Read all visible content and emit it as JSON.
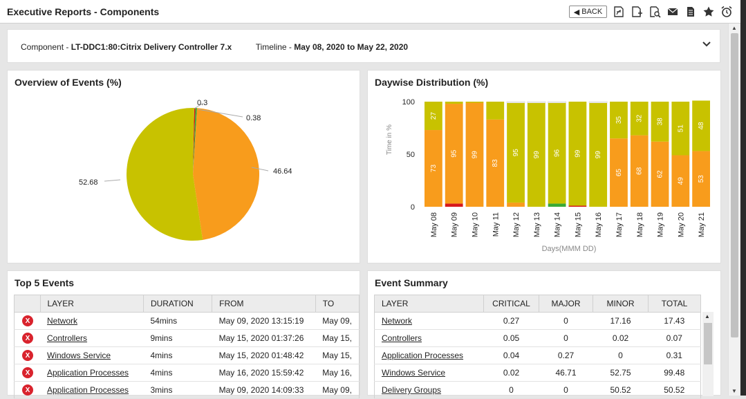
{
  "header": {
    "title": "Executive Reports - Components",
    "back_label": "BACK",
    "icons": [
      "pdf-export-icon",
      "add-document-icon",
      "search-report-icon",
      "mail-icon",
      "report-icon",
      "star-icon",
      "alarm-icon"
    ]
  },
  "info": {
    "component_label": "Component - ",
    "component_value": "LT-DDC1:80:Citrix Delivery Controller 7.x",
    "timeline_label": "Timeline - ",
    "timeline_value": "May 08, 2020 to May 22, 2020"
  },
  "pie": {
    "title": "Overview of Events (%)",
    "labels": [
      "0.3",
      "0.38",
      "46.64",
      "52.68"
    ]
  },
  "bar": {
    "title": "Daywise Distribution (%)",
    "ylabel": "Time in %",
    "xlabel": "Days(MMM DD)"
  },
  "colors": {
    "critical": "#d7191c",
    "major": "#f89c1c",
    "minor": "#c8c200",
    "normal": "#3aaa35",
    "unknown": "#ffffff"
  },
  "chart_data": [
    {
      "type": "pie",
      "title": "Overview of Events (%)",
      "slices": [
        {
          "value": 0.3,
          "color": "#d7191c"
        },
        {
          "value": 0.38,
          "color": "#3aaa35"
        },
        {
          "value": 46.64,
          "color": "#f89c1c"
        },
        {
          "value": 52.68,
          "color": "#c8c200"
        }
      ]
    },
    {
      "type": "bar",
      "stacked": true,
      "title": "Daywise Distribution (%)",
      "xlabel": "Days(MMM DD)",
      "ylabel": "Time in %",
      "ylim": [
        0,
        100
      ],
      "yticks": [
        0,
        50,
        100
      ],
      "categories": [
        "May 08",
        "May 09",
        "May 10",
        "May 11",
        "May 12",
        "May 13",
        "May 14",
        "May 15",
        "May 16",
        "May 17",
        "May 18",
        "May 19",
        "May 20",
        "May 21"
      ],
      "series": [
        {
          "color": "#d7191c",
          "values": [
            0,
            3,
            0,
            0,
            0,
            0,
            0,
            1,
            0,
            0,
            0,
            0,
            0,
            0
          ],
          "labels": [
            "",
            "",
            "",
            "",
            "",
            "",
            "",
            "",
            "",
            "",
            "",
            "",
            "",
            ""
          ]
        },
        {
          "color": "#3aaa35",
          "values": [
            0,
            0,
            0,
            0,
            0,
            0,
            3,
            0,
            0,
            0,
            0,
            0,
            0,
            0
          ],
          "labels": [
            "",
            "",
            "",
            "",
            "",
            "",
            "",
            "",
            "",
            "",
            "",
            "",
            "",
            ""
          ]
        },
        {
          "color": "#f89c1c",
          "values": [
            73,
            95,
            99,
            83,
            4,
            0,
            0,
            0,
            0,
            65,
            68,
            62,
            49,
            53
          ],
          "labels": [
            "73",
            "95",
            "99",
            "83",
            "",
            "",
            "",
            "",
            "",
            "65",
            "68",
            "62",
            "49",
            "53"
          ]
        },
        {
          "color": "#c8c200",
          "values": [
            27,
            2,
            1,
            17,
            95,
            99,
            96,
            99,
            99,
            35,
            32,
            38,
            51,
            48
          ],
          "labels": [
            "27",
            "",
            "",
            "",
            "95",
            "99",
            "96",
            "99",
            "99",
            "35",
            "32",
            "38",
            "51",
            "48"
          ]
        },
        {
          "color": "#ffffff",
          "values": [
            0,
            0,
            0,
            0,
            1,
            1,
            1,
            0,
            1,
            0,
            0,
            0,
            0,
            0
          ],
          "labels": [
            "",
            "",
            "",
            "",
            "",
            "",
            "",
            "",
            "",
            "",
            "",
            "",
            "",
            ""
          ]
        }
      ]
    }
  ],
  "events": {
    "title": "Top 5 Events",
    "columns": [
      "",
      "LAYER",
      "DURATION",
      "FROM",
      "TO"
    ],
    "rows": [
      {
        "layer": "Network",
        "duration": "54mins",
        "from": "May 09, 2020 13:15:19",
        "to": "May 09,"
      },
      {
        "layer": "Controllers",
        "duration": "9mins",
        "from": "May 15, 2020 01:37:26",
        "to": "May 15,"
      },
      {
        "layer": "Windows Service",
        "duration": "4mins",
        "from": "May 15, 2020 01:48:42",
        "to": "May 15,"
      },
      {
        "layer": "Application Processes",
        "duration": "4mins",
        "from": "May 16, 2020 15:59:42",
        "to": "May 16,"
      },
      {
        "layer": "Application Processes",
        "duration": "3mins",
        "from": "May 09, 2020 14:09:33",
        "to": "May 09,"
      }
    ]
  },
  "summary": {
    "title": "Event Summary",
    "columns": [
      "LAYER",
      "CRITICAL",
      "MAJOR",
      "MINOR",
      "TOTAL"
    ],
    "rows": [
      {
        "layer": "Network",
        "critical": "0.27",
        "major": "0",
        "minor": "17.16",
        "total": "17.43"
      },
      {
        "layer": "Controllers",
        "critical": "0.05",
        "major": "0",
        "minor": "0.02",
        "total": "0.07"
      },
      {
        "layer": "Application Processes",
        "critical": "0.04",
        "major": "0.27",
        "minor": "0",
        "total": "0.31"
      },
      {
        "layer": "Windows Service",
        "critical": "0.02",
        "major": "46.71",
        "minor": "52.75",
        "total": "99.48"
      },
      {
        "layer": "Delivery Groups",
        "critical": "0",
        "major": "0",
        "minor": "50.52",
        "total": "50.52"
      }
    ]
  }
}
